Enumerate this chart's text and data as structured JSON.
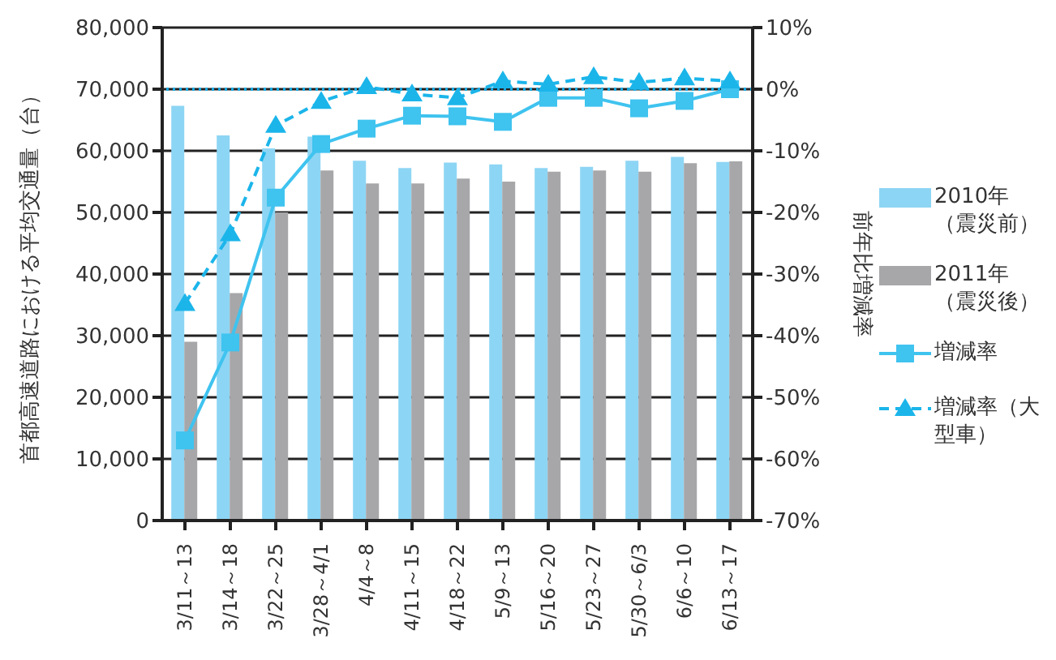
{
  "chart_data": {
    "type": "bar",
    "categories": [
      "3/11～13",
      "3/14～18",
      "3/22～25",
      "3/28～4/1",
      "4/4～8",
      "4/11～15",
      "4/18～22",
      "5/9～13",
      "5/16～20",
      "5/23～27",
      "5/30～6/3",
      "6/6～10",
      "6/13～17"
    ],
    "series": [
      {
        "name": "2010年（震災前）",
        "color": "#8dd5f4",
        "values": [
          67300,
          62500,
          60400,
          62300,
          58400,
          57200,
          58100,
          57800,
          57200,
          57400,
          58400,
          59000,
          58200
        ]
      },
      {
        "name": "2011年（震災後）",
        "color": "#a7a7aa",
        "values": [
          29000,
          36900,
          50000,
          56800,
          54700,
          54700,
          55500,
          55000,
          56600,
          56800,
          56600,
          58000,
          58300
        ]
      },
      {
        "name": "増減率",
        "type": "line",
        "axis": "y2",
        "color": "#3fc3ef",
        "marker": "square",
        "line_style": "solid",
        "values": [
          -57.0,
          -41.1,
          -17.6,
          -8.9,
          -6.4,
          -4.3,
          -4.4,
          -5.3,
          -1.4,
          -1.4,
          -3.1,
          -1.9,
          0
        ]
      },
      {
        "name": "増減率（大型車）",
        "type": "line",
        "axis": "y2",
        "color": "#1bb5ea",
        "marker": "triangle",
        "line_style": "dashed",
        "values": [
          -34.8,
          -23.5,
          -5.9,
          -2.0,
          0.4,
          -0.8,
          -1.4,
          1.3,
          0.8,
          2.0,
          1.1,
          1.8,
          1.3
        ]
      }
    ],
    "ylabel": "首都高速道路における平均交通量（台）",
    "y2label": "前年比増減率",
    "ylim": [
      0,
      80000
    ],
    "yticks": [
      0,
      {
        "value": 10000,
        "label": "10,000"
      },
      {
        "value": 20000,
        "label": "20,000"
      },
      {
        "value": 30000,
        "label": "30,000"
      },
      {
        "value": 40000,
        "label": "40,000"
      },
      {
        "value": 50000,
        "label": "50,000"
      },
      {
        "value": 60000,
        "label": "60,000"
      },
      {
        "value": 70000,
        "label": "70,000"
      },
      {
        "value": 80000,
        "label": "80,000"
      }
    ],
    "y2lim": [
      -70,
      10
    ],
    "y2ticks": [
      {
        "value": -70,
        "label": "-70%"
      },
      {
        "value": -60,
        "label": "-60%"
      },
      {
        "value": -50,
        "label": "-50%"
      },
      {
        "value": -40,
        "label": "-40%"
      },
      {
        "value": -30,
        "label": "-30%"
      },
      {
        "value": -20,
        "label": "-20%"
      },
      {
        "value": -10,
        "label": "-10%"
      },
      {
        "value": 0,
        "label": "0%"
      },
      {
        "value": 10,
        "label": "10%"
      }
    ],
    "ref_lines": [
      {
        "axis": "y2",
        "value": 0,
        "color": "#1ba8e0",
        "line_style": "dotted"
      }
    ],
    "grid": "y",
    "legend": "right"
  }
}
